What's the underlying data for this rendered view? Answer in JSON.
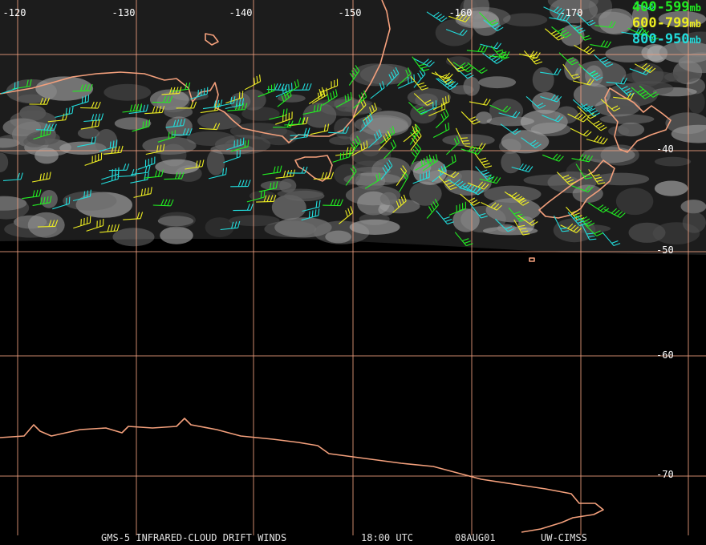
{
  "map": {
    "product": "GMS-5 INFRARED-CLOUD DRIFT WINDS",
    "time": "18:00 UTC",
    "date": "08AUG01",
    "source": "UW-CIMSS",
    "longitude_labels": [
      "-120",
      "-130",
      "-140",
      "-150",
      "-160",
      "-170"
    ],
    "latitude_labels": [
      "-40",
      "-50",
      "-60",
      "-70"
    ],
    "legend": [
      {
        "range": "400-599",
        "unit": "mb",
        "color": "#22ee22"
      },
      {
        "range": "600-799",
        "unit": "mb",
        "color": "#eeee22"
      },
      {
        "range": "800-950",
        "unit": "mb",
        "color": "#22dddd"
      }
    ],
    "colors": {
      "background": "#000000",
      "graticule": "#f0a080",
      "coastline": "#f4a07c",
      "clouds": "#9a9a9a"
    }
  }
}
